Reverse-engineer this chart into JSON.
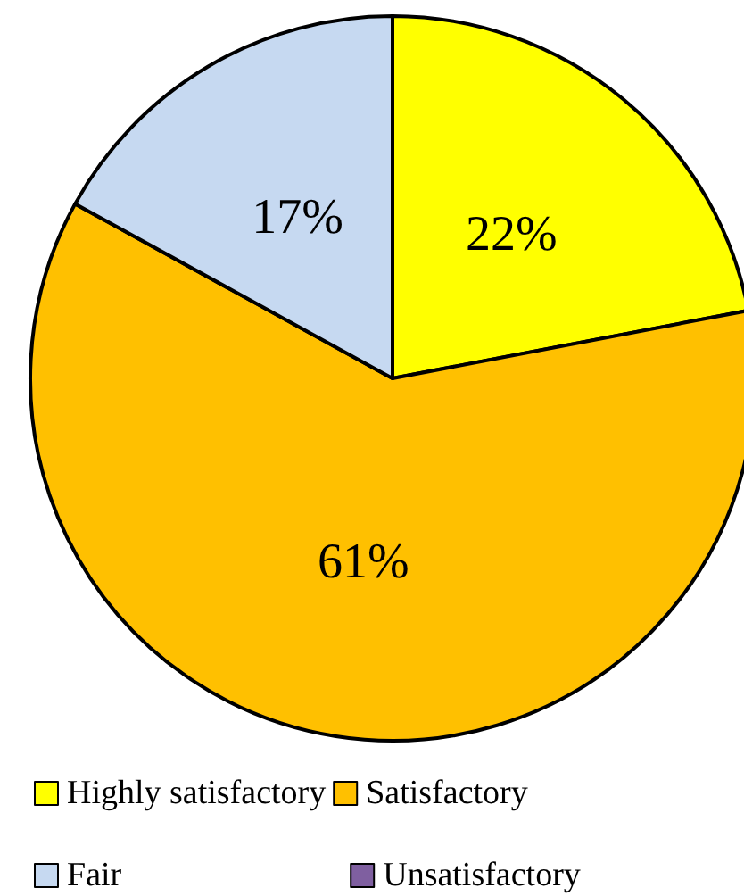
{
  "chart_data": {
    "type": "pie",
    "categories": [
      "Highly satisfactory",
      "Satisfactory",
      "Fair",
      "Unsatisfactory"
    ],
    "values": [
      22,
      61,
      17,
      0
    ],
    "colors": [
      "#ffff00",
      "#ffc000",
      "#c6d9f1",
      "#7f5fa0"
    ],
    "value_labels": [
      "22%",
      "61%",
      "17%",
      null
    ],
    "legend": "bottom"
  }
}
